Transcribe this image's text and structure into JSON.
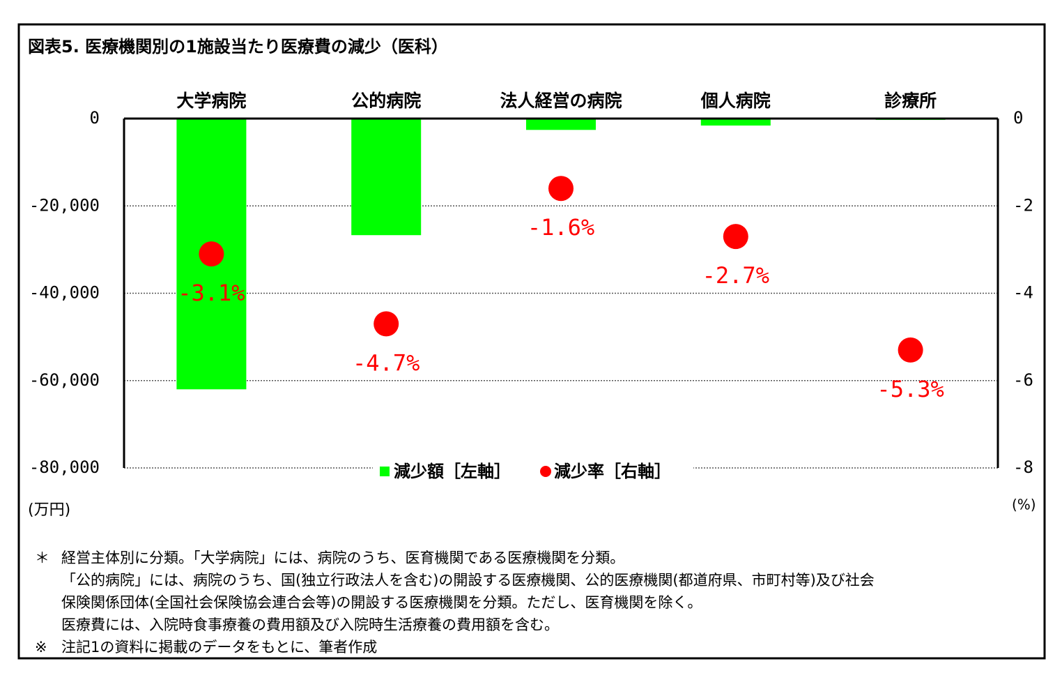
{
  "chart_data": {
    "type": "bar",
    "title": "図表5.  医療機関別の1施設当たり医療費の減少（医科）",
    "categories": [
      "大学病院",
      "公的病院",
      "法人経営の病院",
      "個人病院",
      "診療所"
    ],
    "series": [
      {
        "name": "減少額［左軸］",
        "type": "bar",
        "color": "#00ff00",
        "values": [
          -62000,
          -26700,
          -2600,
          -1600,
          -300
        ]
      },
      {
        "name": "減少率［右軸］",
        "type": "scatter",
        "axis": "y2",
        "color": "#ff0000",
        "values": [
          -3.1,
          -4.7,
          -1.6,
          -2.7,
          -5.3
        ],
        "value_labels": [
          "-3.1%",
          "-4.7%",
          "-1.6%",
          "-2.7%",
          "-5.3%"
        ]
      }
    ],
    "ylim": [
      -80000,
      0
    ],
    "yticks": [
      {
        "value": -80000,
        "label": "-80,000"
      },
      {
        "value": -60000,
        "label": "-60,000"
      },
      {
        "value": -40000,
        "label": "-40,000"
      },
      {
        "value": -20000,
        "label": "-20,000"
      },
      0
    ],
    "y2lim": [
      -8,
      0
    ],
    "y2ticks": [
      -8,
      -6,
      -4,
      -2,
      0
    ],
    "ylabel": "(万円)",
    "y2label": "(%)",
    "grid": true,
    "legend": "bottom",
    "notes": [
      {
        "mark": "＊",
        "lines": [
          "経営主体別に分類。「大学病院」には、病院のうち、医育機関である医療機関を分類。",
          "「公的病院」には、病院のうち、国(独立行政法人を含む)の開設する医療機関、公的医療機関(都道府県、市町村等)及び社会",
          "保険関係団体(全国社会保険協会連合会等)の開設する医療機関を分類。ただし、医育機関を除く。",
          "医療費には、入院時食事療養の費用額及び入院時生活療養の費用額を含む。"
        ]
      },
      {
        "mark": "※",
        "lines": [
          "注記1の資料に掲載のデータをもとに、筆者作成"
        ]
      }
    ]
  }
}
